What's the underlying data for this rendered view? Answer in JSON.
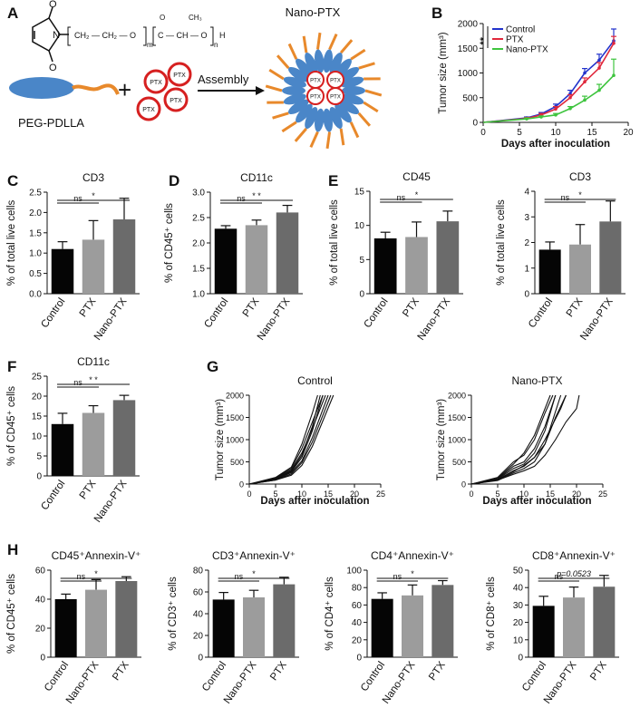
{
  "panel_labels": {
    "A": "A",
    "B": "B",
    "C": "C",
    "D": "D",
    "E": "E",
    "F": "F",
    "G": "G",
    "H": "H"
  },
  "schematic": {
    "formula_prefix": "N",
    "formula_chain": "CH₂ — CH₂ — O",
    "formula_m": "m",
    "formula_n": "n",
    "formula_ester": "C — CH — O",
    "formula_o": "O",
    "formula_ch3": "CH₃",
    "formula_h": "H",
    "polymer_label": "PEG-PDLLA",
    "plus": "+",
    "drug_label": "PTX",
    "assembly_label": "Assembly",
    "nano_label": "Nano-PTX",
    "colors": {
      "micelle_blue": "#4a86c8",
      "tail_orange": "#e8892b",
      "ptx_red": "#d62020"
    }
  },
  "chart_data": [
    {
      "id": "B",
      "type": "line",
      "title": "",
      "xlabel": "Days after inoculation",
      "ylabel": "Tumor size (mm³)",
      "xlim": [
        0,
        20
      ],
      "ylim": [
        0,
        2000
      ],
      "xticks": [
        0,
        5,
        10,
        15,
        20
      ],
      "yticks": [
        0,
        500,
        1000,
        1500,
        2000
      ],
      "annotation": "**",
      "legend_position": "top-left",
      "series": [
        {
          "name": "Control",
          "color": "#2233cc",
          "x": [
            0,
            6,
            8,
            10,
            12,
            14,
            16,
            18
          ],
          "y": [
            0,
            90,
            170,
            320,
            580,
            1000,
            1260,
            1650
          ],
          "err": [
            0,
            20,
            30,
            50,
            70,
            90,
            120,
            240
          ]
        },
        {
          "name": "PTX",
          "color": "#e0283c",
          "x": [
            0,
            6,
            8,
            10,
            12,
            14,
            16,
            18
          ],
          "y": [
            0,
            80,
            150,
            270,
            500,
            820,
            1100,
            1600
          ],
          "err": [
            0,
            20,
            30,
            50,
            60,
            80,
            110,
            140
          ]
        },
        {
          "name": "Nano-PTX",
          "color": "#3ec43e",
          "x": [
            0,
            6,
            8,
            10,
            12,
            14,
            16,
            18
          ],
          "y": [
            0,
            70,
            110,
            150,
            280,
            450,
            650,
            950
          ],
          "err": [
            0,
            20,
            20,
            30,
            40,
            80,
            120,
            330
          ]
        }
      ]
    },
    {
      "id": "C",
      "type": "bar",
      "title": "CD3",
      "ylabel": "% of total live cells",
      "categories": [
        "Control",
        "PTX",
        "Nano-PTX"
      ],
      "values": [
        1.1,
        1.33,
        1.83
      ],
      "errors": [
        0.18,
        0.47,
        0.52
      ],
      "ylim": [
        0,
        2.5
      ],
      "yticks": [
        0,
        0.5,
        1,
        1.5,
        2,
        2.5
      ],
      "tick_labels": [
        "0.0",
        "0.5",
        "1.0",
        "1.5",
        "2.0",
        "2.5"
      ],
      "sig": [
        {
          "a": 0,
          "b": 1,
          "label": "ns"
        },
        {
          "a": 0,
          "b": 2,
          "label": "*"
        }
      ]
    },
    {
      "id": "D",
      "type": "bar",
      "title": "CD11c",
      "ylabel": "% of CD45⁺ cells",
      "categories": [
        "Control",
        "PTX",
        "Nano-PTX"
      ],
      "values": [
        2.28,
        2.35,
        2.6
      ],
      "errors": [
        0.06,
        0.1,
        0.14
      ],
      "ylim": [
        1,
        3
      ],
      "yticks": [
        1,
        1.5,
        2,
        2.5,
        3
      ],
      "tick_labels": [
        "1.0",
        "1.5",
        "2.0",
        "2.5",
        "3.0"
      ],
      "sig": [
        {
          "a": 0,
          "b": 1,
          "label": "ns"
        },
        {
          "a": 0,
          "b": 2,
          "label": "* *"
        }
      ]
    },
    {
      "id": "E1",
      "type": "bar",
      "title": "CD45",
      "ylabel": "% of total live cells",
      "categories": [
        "Control",
        "PTX",
        "Nano-PTX"
      ],
      "values": [
        8.1,
        8.3,
        10.6
      ],
      "errors": [
        0.9,
        2.2,
        1.5
      ],
      "ylim": [
        0,
        15
      ],
      "yticks": [
        0,
        5,
        10,
        15
      ],
      "tick_labels": [
        "0",
        "5",
        "10",
        "15"
      ],
      "sig": [
        {
          "a": 0,
          "b": 1,
          "label": "ns"
        },
        {
          "a": 0,
          "b": 2,
          "label": "*"
        }
      ]
    },
    {
      "id": "E2",
      "type": "bar",
      "title": "CD3",
      "ylabel": "% of total live cells",
      "categories": [
        "Control",
        "PTX",
        "Nano-PTX"
      ],
      "values": [
        1.72,
        1.92,
        2.82
      ],
      "errors": [
        0.3,
        0.78,
        0.8
      ],
      "ylim": [
        0,
        4
      ],
      "yticks": [
        0,
        1,
        2,
        3,
        4
      ],
      "tick_labels": [
        "0",
        "1",
        "2",
        "3",
        "4"
      ],
      "sig": [
        {
          "a": 0,
          "b": 1,
          "label": "ns"
        },
        {
          "a": 0,
          "b": 2,
          "label": "*"
        }
      ]
    },
    {
      "id": "F",
      "type": "bar",
      "title": "CD11c",
      "ylabel": "% of CD45⁺ cells",
      "categories": [
        "Control",
        "PTX",
        "Nano-PTX"
      ],
      "values": [
        13,
        15.8,
        19
      ],
      "errors": [
        2.7,
        1.8,
        1.2
      ],
      "ylim": [
        0,
        25
      ],
      "yticks": [
        0,
        5,
        10,
        15,
        20,
        25
      ],
      "tick_labels": [
        "0",
        "5",
        "10",
        "15",
        "20",
        "25"
      ],
      "sig": [
        {
          "a": 0,
          "b": 1,
          "label": "ns"
        },
        {
          "a": 0,
          "b": 2,
          "label": "* *"
        }
      ]
    },
    {
      "id": "G1",
      "type": "line",
      "title": "Control",
      "xlabel": "Days after inoculation",
      "ylabel": "Tumor size (mm³)",
      "xlim": [
        0,
        25
      ],
      "ylim": [
        0,
        2000
      ],
      "xticks": [
        0,
        5,
        10,
        15,
        20,
        25
      ],
      "yticks": [
        0,
        500,
        1000,
        1500,
        2000
      ],
      "series": [
        {
          "x": [
            0,
            5,
            8,
            10,
            12,
            13.5
          ],
          "y": [
            0,
            120,
            300,
            650,
            1300,
            2000
          ]
        },
        {
          "x": [
            0,
            5,
            8,
            10,
            12,
            14
          ],
          "y": [
            0,
            110,
            280,
            600,
            1200,
            2000
          ]
        },
        {
          "x": [
            0,
            5,
            8,
            10,
            12,
            14.5
          ],
          "y": [
            0,
            130,
            320,
            700,
            1250,
            2000
          ]
        },
        {
          "x": [
            0,
            5,
            8,
            10,
            12,
            15
          ],
          "y": [
            0,
            100,
            260,
            520,
            1050,
            2000
          ]
        },
        {
          "x": [
            0,
            5,
            8,
            10,
            12,
            14
          ],
          "y": [
            0,
            140,
            350,
            800,
            1400,
            2000
          ]
        },
        {
          "x": [
            0,
            5,
            8,
            10,
            12,
            15.5
          ],
          "y": [
            0,
            90,
            230,
            480,
            950,
            2000
          ]
        },
        {
          "x": [
            0,
            5,
            8,
            10,
            12,
            13
          ],
          "y": [
            0,
            150,
            380,
            900,
            1600,
            2000
          ]
        },
        {
          "x": [
            0,
            5,
            8,
            10,
            12,
            16
          ],
          "y": [
            0,
            90,
            200,
            420,
            850,
            2000
          ]
        }
      ]
    },
    {
      "id": "G2",
      "type": "line",
      "title": "Nano-PTX",
      "xlabel": "Days after inoculation",
      "ylabel": "Tumor size (mm³)",
      "xlim": [
        0,
        25
      ],
      "ylim": [
        0,
        2000
      ],
      "xticks": [
        0,
        5,
        10,
        15,
        20,
        25
      ],
      "yticks": [
        0,
        500,
        1000,
        1500,
        2000
      ],
      "series": [
        {
          "x": [
            0,
            5,
            8,
            10,
            12,
            14,
            16,
            18
          ],
          "y": [
            0,
            100,
            300,
            400,
            600,
            900,
            1500,
            2000
          ]
        },
        {
          "x": [
            0,
            5,
            8,
            10,
            12,
            14,
            16
          ],
          "y": [
            0,
            120,
            400,
            500,
            800,
            1300,
            2000
          ]
        },
        {
          "x": [
            0,
            5,
            8,
            10,
            12,
            14,
            15.5
          ],
          "y": [
            0,
            150,
            500,
            650,
            1000,
            1600,
            2000
          ]
        },
        {
          "x": [
            0,
            5,
            8,
            10,
            12,
            14,
            17
          ],
          "y": [
            0,
            80,
            250,
            350,
            500,
            900,
            2000
          ]
        },
        {
          "x": [
            0,
            5,
            8,
            10,
            12,
            14,
            16,
            18,
            20,
            20.5
          ],
          "y": [
            0,
            90,
            220,
            300,
            400,
            650,
            1000,
            1400,
            1700,
            2000
          ]
        },
        {
          "x": [
            0,
            5,
            8,
            10,
            12,
            14,
            16
          ],
          "y": [
            0,
            110,
            350,
            450,
            700,
            1200,
            2000
          ]
        },
        {
          "x": [
            0,
            5,
            8,
            10,
            12,
            14,
            15
          ],
          "y": [
            0,
            130,
            450,
            700,
            1100,
            1700,
            2000
          ]
        },
        {
          "x": [
            0,
            5,
            8,
            10,
            12,
            14,
            17,
            18
          ],
          "y": [
            0,
            90,
            280,
            420,
            600,
            1000,
            1700,
            2000
          ]
        }
      ]
    },
    {
      "id": "H1",
      "type": "bar",
      "title": "CD45⁺Annexin-V⁺",
      "ylabel": "% of CD45⁺ cells",
      "categories": [
        "Control",
        "Nano-PTX",
        "PTX"
      ],
      "values": [
        40,
        46.5,
        52.5
      ],
      "errors": [
        3.5,
        7,
        3
      ],
      "ylim": [
        0,
        60
      ],
      "yticks": [
        0,
        20,
        40,
        60
      ],
      "tick_labels": [
        "0",
        "20",
        "40",
        "60"
      ],
      "sig": [
        {
          "a": 0,
          "b": 1,
          "label": "ns"
        },
        {
          "a": 0,
          "b": 2,
          "label": "*"
        }
      ]
    },
    {
      "id": "H2",
      "type": "bar",
      "title": "CD3⁺Annexin-V⁺",
      "ylabel": "% of CD3⁺ cells",
      "categories": [
        "Control",
        "Nano-PTX",
        "PTX"
      ],
      "values": [
        53,
        55,
        67
      ],
      "errors": [
        6.5,
        6.5,
        6.5
      ],
      "ylim": [
        0,
        80
      ],
      "yticks": [
        0,
        20,
        40,
        60,
        80
      ],
      "tick_labels": [
        "0",
        "20",
        "40",
        "60",
        "80"
      ],
      "sig": [
        {
          "a": 0,
          "b": 1,
          "label": "ns"
        },
        {
          "a": 0,
          "b": 2,
          "label": "*"
        }
      ]
    },
    {
      "id": "H3",
      "type": "bar",
      "title": "CD4⁺Annexin-V⁺",
      "ylabel": "% of CD4⁺ cells",
      "categories": [
        "Control",
        "Nano-PTX",
        "PTX"
      ],
      "values": [
        67,
        71,
        83
      ],
      "errors": [
        7,
        12,
        5
      ],
      "ylim": [
        0,
        100
      ],
      "yticks": [
        0,
        20,
        40,
        60,
        80,
        100
      ],
      "tick_labels": [
        "0",
        "20",
        "40",
        "60",
        "80",
        "100"
      ],
      "sig": [
        {
          "a": 0,
          "b": 1,
          "label": "ns"
        },
        {
          "a": 0,
          "b": 2,
          "label": "*"
        }
      ]
    },
    {
      "id": "H4",
      "type": "bar",
      "title": "CD8⁺Annexin-V⁺",
      "ylabel": "% of CD8⁺ cells",
      "categories": [
        "Control",
        "Nano-PTX",
        "PTX"
      ],
      "values": [
        29.5,
        34.3,
        40.5
      ],
      "errors": [
        5.5,
        6,
        6.5
      ],
      "ylim": [
        0,
        50
      ],
      "yticks": [
        0,
        10,
        20,
        30,
        40,
        50
      ],
      "tick_labels": [
        "0",
        "10",
        "20",
        "30",
        "40",
        "50"
      ],
      "sig": [
        {
          "a": 0,
          "b": 1,
          "label": "ns"
        },
        {
          "a": 0,
          "b": 2,
          "label": "p=0.0523"
        }
      ]
    }
  ],
  "bar_colors": [
    "#050505",
    "#9c9c9c",
    "#6b6b6b"
  ]
}
